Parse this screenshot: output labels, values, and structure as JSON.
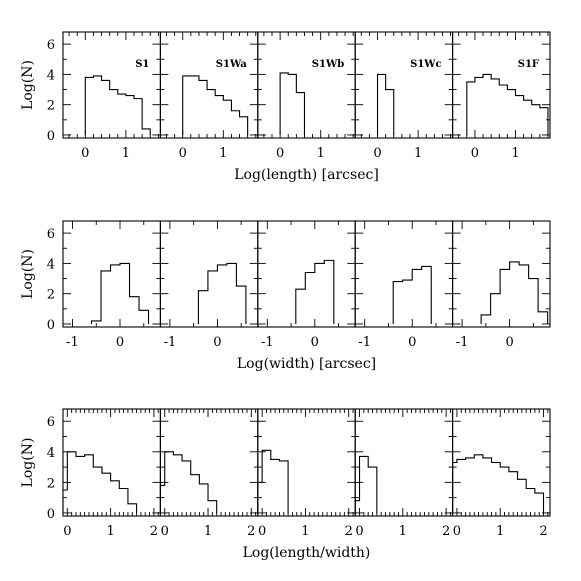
{
  "chart_data": [
    {
      "type": "histogram",
      "row": "length",
      "xlabel": "Log(length) [arcsec]",
      "ylabel": "Log(N)",
      "xlim": [
        -0.55,
        1.85
      ],
      "ylim": [
        -0.2,
        6.8
      ],
      "xticks": [
        0,
        1
      ],
      "yticks": [
        0,
        2,
        4,
        6
      ],
      "panels": [
        {
          "label": "S1",
          "edges": [
            0,
            0.2,
            0.4,
            0.6,
            0.8,
            1.0,
            1.2,
            1.4,
            1.6
          ],
          "counts": [
            3.8,
            3.9,
            3.6,
            3.0,
            2.7,
            2.6,
            2.4,
            0.4
          ]
        },
        {
          "label": "S1Wa",
          "edges": [
            0,
            0.2,
            0.4,
            0.6,
            0.8,
            1.0,
            1.2,
            1.4,
            1.6
          ],
          "counts": [
            3.9,
            3.9,
            3.6,
            3.0,
            2.6,
            2.3,
            1.6,
            1.2
          ]
        },
        {
          "label": "S1Wb",
          "edges": [
            0,
            0.2,
            0.4,
            0.6
          ],
          "counts": [
            4.1,
            4.0,
            2.8
          ]
        },
        {
          "label": "S1Wc",
          "edges": [
            0,
            0.2,
            0.4
          ],
          "counts": [
            4.0,
            3.0
          ]
        },
        {
          "label": "S1F",
          "edges": [
            -0.2,
            0,
            0.2,
            0.4,
            0.6,
            0.8,
            1.0,
            1.2,
            1.4,
            1.6,
            1.8
          ],
          "counts": [
            3.5,
            3.8,
            4.0,
            3.7,
            3.3,
            3.0,
            2.6,
            2.3,
            2.0,
            1.8
          ]
        }
      ]
    },
    {
      "type": "histogram",
      "row": "width",
      "xlabel": "Log(width) [arcsec]",
      "ylabel": "Log(N)",
      "xlim": [
        -1.2,
        0.85
      ],
      "ylim": [
        -0.2,
        6.8
      ],
      "xticks": [
        -1,
        0
      ],
      "yticks": [
        0,
        2,
        4,
        6
      ],
      "panels": [
        {
          "label": "S1",
          "edges": [
            -0.6,
            -0.4,
            -0.2,
            0,
            0.2,
            0.4,
            0.6
          ],
          "counts": [
            0.2,
            3.5,
            3.9,
            4.0,
            1.8,
            0.9
          ]
        },
        {
          "label": "S1Wa",
          "edges": [
            -0.4,
            -0.2,
            0,
            0.2,
            0.4,
            0.6
          ],
          "counts": [
            2.2,
            3.5,
            3.9,
            4.0,
            2.5
          ]
        },
        {
          "label": "S1Wb",
          "edges": [
            -0.4,
            -0.2,
            0,
            0.2,
            0.4
          ],
          "counts": [
            2.3,
            3.4,
            4.0,
            4.2
          ]
        },
        {
          "label": "S1Wc",
          "edges": [
            -0.4,
            -0.2,
            0,
            0.2,
            0.4
          ],
          "counts": [
            2.8,
            2.9,
            3.6,
            3.8
          ]
        },
        {
          "label": "S1F",
          "edges": [
            -0.6,
            -0.4,
            -0.2,
            0,
            0.2,
            0.4,
            0.6,
            0.8
          ],
          "counts": [
            0.6,
            2.0,
            3.6,
            4.1,
            3.9,
            3.0,
            0.8
          ]
        }
      ]
    },
    {
      "type": "histogram",
      "row": "length-width",
      "xlabel": "Log(length/width)",
      "ylabel": "Log(N)",
      "xlim": [
        -0.1,
        2.15
      ],
      "ylim": [
        -0.2,
        6.8
      ],
      "xticks": [
        0,
        1,
        2
      ],
      "yticks": [
        0,
        2,
        4,
        6
      ],
      "panels": [
        {
          "label": "S1",
          "edges": [
            -0.1,
            0,
            0.2,
            0.4,
            0.6,
            0.8,
            1.0,
            1.2,
            1.4,
            1.6
          ],
          "counts": [
            1.5,
            4.0,
            3.7,
            3.8,
            3.0,
            2.6,
            2.1,
            1.6,
            0.6
          ]
        },
        {
          "label": "S1Wa",
          "edges": [
            -0.1,
            0,
            0.2,
            0.4,
            0.6,
            0.8,
            1.0,
            1.2
          ],
          "counts": [
            1.8,
            4.0,
            3.8,
            3.4,
            2.5,
            1.9,
            0.8
          ]
        },
        {
          "label": "S1Wb",
          "edges": [
            -0.1,
            0,
            0.2,
            0.4,
            0.6
          ],
          "counts": [
            2.0,
            4.1,
            3.5,
            3.4
          ]
        },
        {
          "label": "S1Wc",
          "edges": [
            -0.1,
            0,
            0.2,
            0.4
          ],
          "counts": [
            0.8,
            3.7,
            3.0
          ]
        },
        {
          "label": "S1F",
          "edges": [
            -0.1,
            0,
            0.2,
            0.4,
            0.6,
            0.8,
            1.0,
            1.2,
            1.4,
            1.6,
            1.8,
            2.0
          ],
          "counts": [
            3.3,
            3.5,
            3.6,
            3.8,
            3.6,
            3.3,
            3.0,
            2.7,
            2.2,
            1.6,
            1.3
          ]
        }
      ]
    }
  ]
}
